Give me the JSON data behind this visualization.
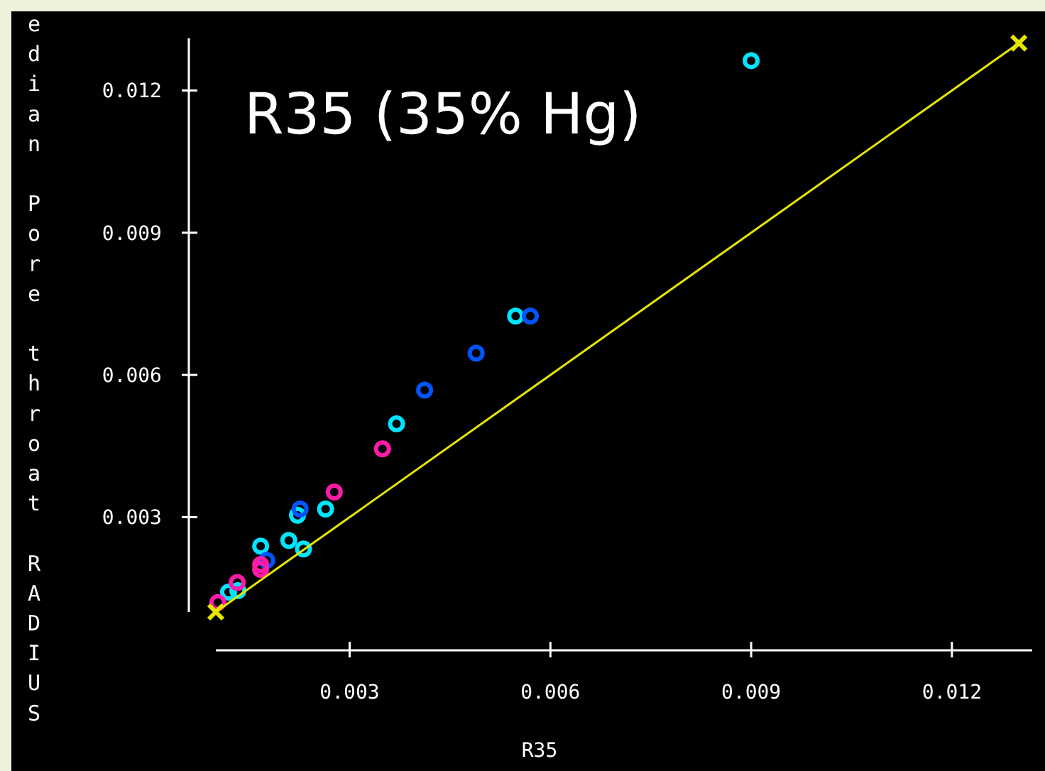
{
  "chart_data": {
    "type": "scatter",
    "title": "R35 (35% Hg)",
    "xlabel": "R35",
    "ylabel": "edian Pore throat RADIUS",
    "xlim": [
      0.001,
      0.0132
    ],
    "ylim": [
      0.001,
      0.0131
    ],
    "xticks": [
      0.003,
      0.006,
      0.009,
      0.012
    ],
    "yticks": [
      0.003,
      0.006,
      0.009,
      0.012
    ],
    "grid": false,
    "marker": "circle",
    "series": [
      {
        "color": "#00e5ff",
        "x": [
          0.009,
          0.00548,
          0.0037,
          0.00264,
          0.00222,
          0.00167,
          0.00209,
          0.00231,
          0.00119,
          0.00133
        ],
        "values": [
          0.01263,
          0.00724,
          0.00497,
          0.00317,
          0.00304,
          0.00239,
          0.00251,
          0.00233,
          0.00142,
          0.00145
        ]
      },
      {
        "color": "#0055ff",
        "x": [
          0.0057,
          0.00489,
          0.00412,
          0.00226,
          0.00176
        ],
        "values": [
          0.00724,
          0.00646,
          0.00568,
          0.00317,
          0.00209
        ]
      },
      {
        "color": "#ff1aa8",
        "x": [
          0.00349,
          0.00277,
          0.00167,
          0.00167,
          0.00132,
          0.00103
        ],
        "values": [
          0.00444,
          0.00353,
          0.0019,
          0.002,
          0.00162,
          0.0012
        ]
      },
      {
        "type": "line",
        "color": "#e6e600",
        "marker": "cross",
        "line_style": "solid",
        "x": [
          0.001,
          0.013
        ],
        "values": [
          0.001,
          0.013
        ]
      }
    ]
  }
}
